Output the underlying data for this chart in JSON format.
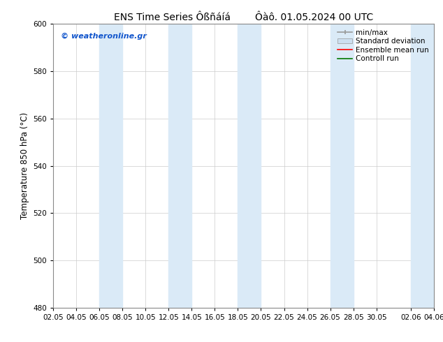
{
  "title": "ENS Time Series Ôßñáíá        Ôàô. 01.05.2024 00 UTC",
  "ylabel": "Temperature 850 hPa (°C)",
  "yticks": [
    480,
    500,
    520,
    540,
    560,
    580,
    600
  ],
  "ylim": [
    480,
    600
  ],
  "xtick_labels": [
    "02.05",
    "04.05",
    "06.05",
    "08.05",
    "10.05",
    "12.05",
    "14.05",
    "16.05",
    "18.05",
    "20.05",
    "22.05",
    "24.05",
    "26.05",
    "28.05",
    "30.05",
    "02.06",
    "04.06"
  ],
  "xtick_positions": [
    0,
    2,
    4,
    6,
    8,
    10,
    12,
    14,
    16,
    18,
    20,
    22,
    24,
    26,
    28,
    31,
    33
  ],
  "xlim_start": 0,
  "xlim_end": 33,
  "shaded_bands": [
    {
      "x_start": 4,
      "x_end": 6
    },
    {
      "x_start": 10,
      "x_end": 12
    },
    {
      "x_start": 16,
      "x_end": 18
    },
    {
      "x_start": 24,
      "x_end": 26
    },
    {
      "x_start": 31,
      "x_end": 33
    }
  ],
  "band_color": "#daeaf7",
  "watermark_text": "© weatheronline.gr",
  "watermark_color": "#1155cc",
  "background_color": "#ffffff",
  "title_fontsize": 10,
  "tick_fontsize": 7.5,
  "ylabel_fontsize": 8.5,
  "grid_color": "#cccccc",
  "legend_fontsize": 7.5,
  "minmax_color": "#999999",
  "std_color": "#ccdff0",
  "ens_color": "#ff0000",
  "ctrl_color": "#007700"
}
